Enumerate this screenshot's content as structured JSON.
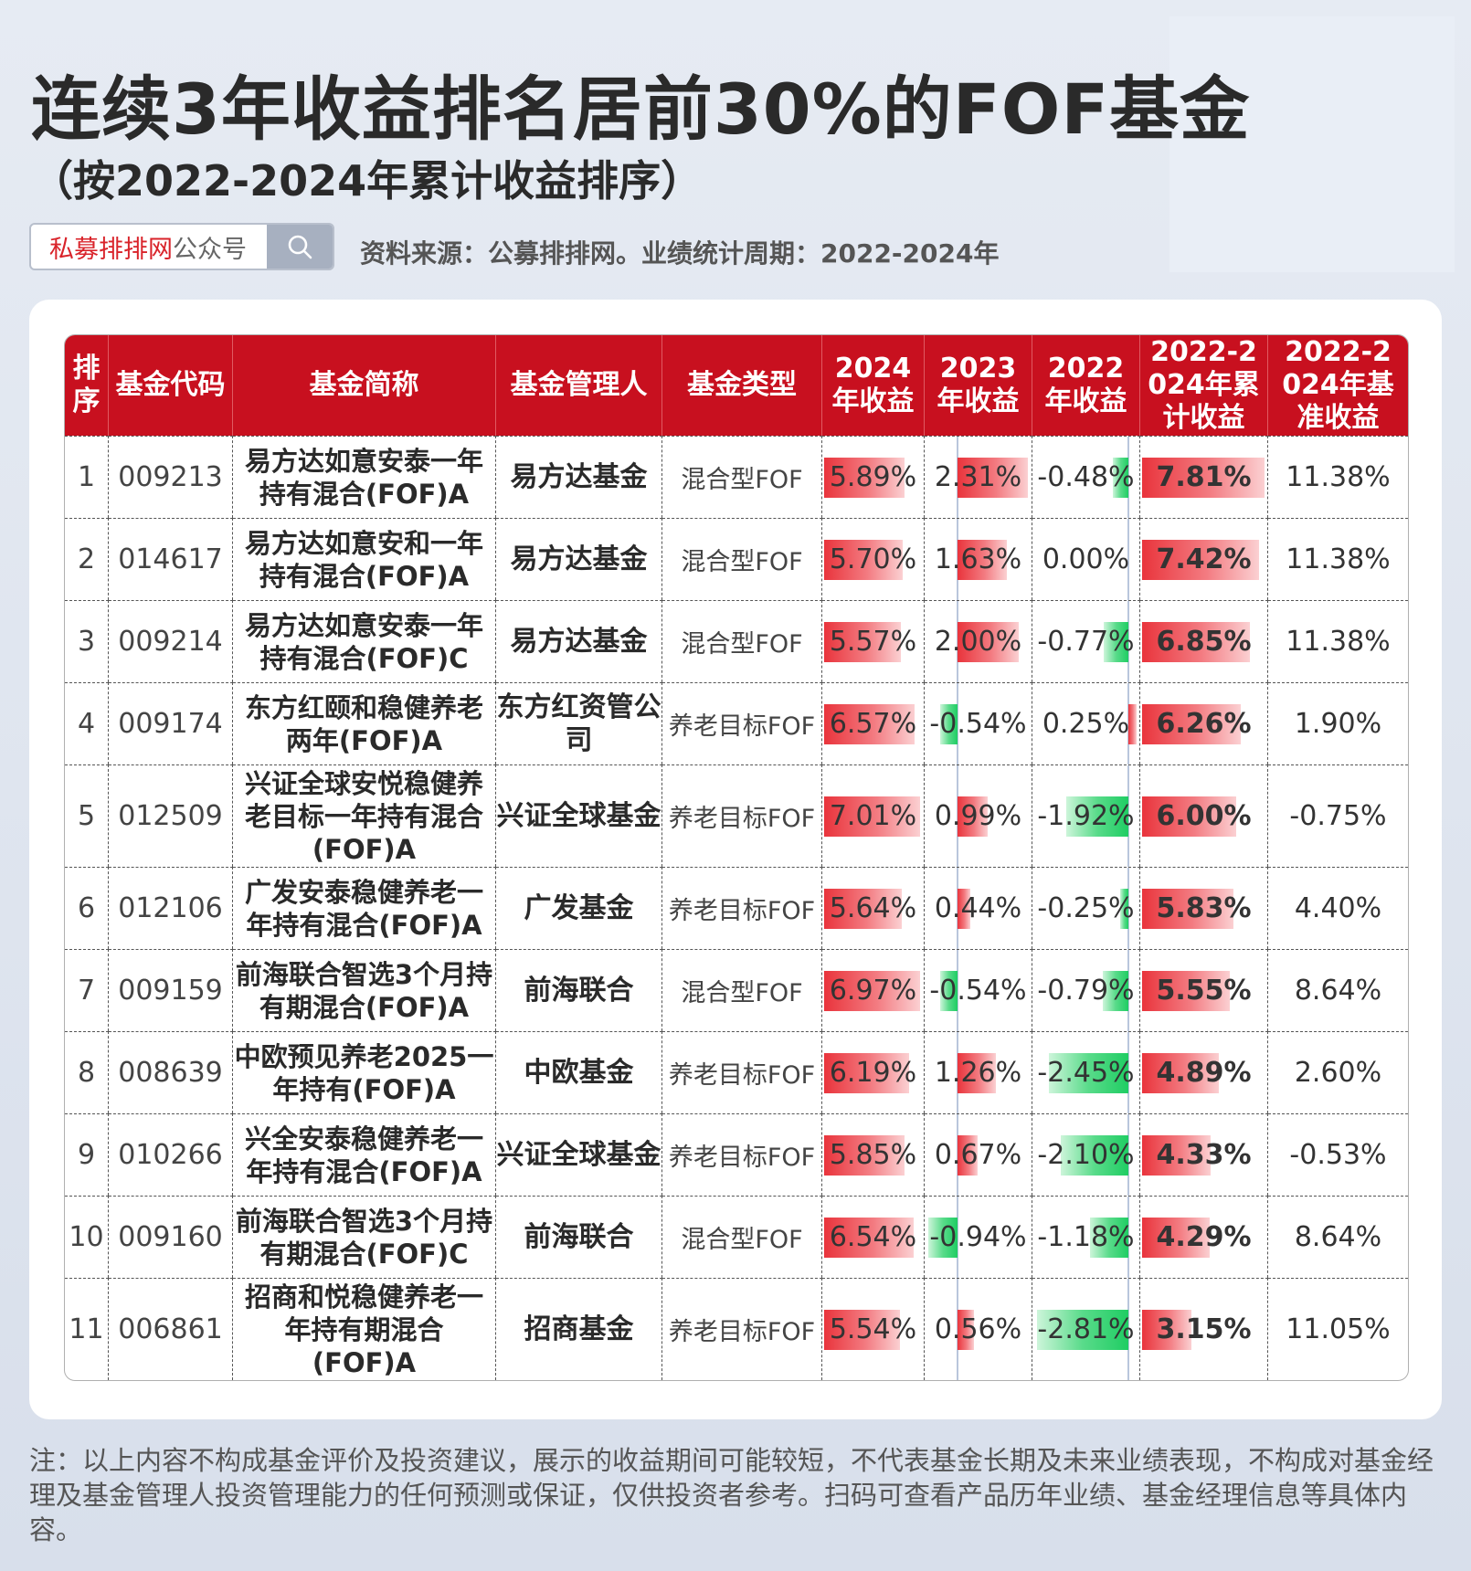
{
  "title": "连续3年收益排名居前30%的FOF基金",
  "subtitle": "（按2022-2024年累计收益排序）",
  "search": {
    "brand": "私募排排网",
    "suffix": "公众号"
  },
  "source": "资料来源：公募排排网。业绩统计周期：2022-2024年",
  "table": {
    "headers": [
      "排序",
      "基金代码",
      "基金简称",
      "基金管理人",
      "基金类型",
      "2024年收益",
      "2023年收益",
      "2022年收益",
      "2022-2024年累计收益",
      "2022-2024年基准收益"
    ],
    "rows": [
      {
        "rank": "1",
        "code": "009213",
        "name": "易方达如意安泰一年持有混合(FOF)A",
        "manager": "易方达基金",
        "type": "混合型FOF",
        "r2024": "5.89%",
        "r2023": "2.31%",
        "r2022": "-0.48%",
        "cum": "7.81%",
        "bench": "11.38%"
      },
      {
        "rank": "2",
        "code": "014617",
        "name": "易方达如意安和一年持有混合(FOF)A",
        "manager": "易方达基金",
        "type": "混合型FOF",
        "r2024": "5.70%",
        "r2023": "1.63%",
        "r2022": "0.00%",
        "cum": "7.42%",
        "bench": "11.38%"
      },
      {
        "rank": "3",
        "code": "009214",
        "name": "易方达如意安泰一年持有混合(FOF)C",
        "manager": "易方达基金",
        "type": "混合型FOF",
        "r2024": "5.57%",
        "r2023": "2.00%",
        "r2022": "-0.77%",
        "cum": "6.85%",
        "bench": "11.38%"
      },
      {
        "rank": "4",
        "code": "009174",
        "name": "东方红颐和稳健养老两年(FOF)A",
        "manager": "东方红资管公司",
        "type": "养老目标FOF",
        "r2024": "6.57%",
        "r2023": "-0.54%",
        "r2022": "0.25%",
        "cum": "6.26%",
        "bench": "1.90%"
      },
      {
        "rank": "5",
        "code": "012509",
        "name": "兴证全球安悦稳健养老目标一年持有混合(FOF)A",
        "manager": "兴证全球基金",
        "type": "养老目标FOF",
        "r2024": "7.01%",
        "r2023": "0.99%",
        "r2022": "-1.92%",
        "cum": "6.00%",
        "bench": "-0.75%"
      },
      {
        "rank": "6",
        "code": "012106",
        "name": "广发安泰稳健养老一年持有混合(FOF)A",
        "manager": "广发基金",
        "type": "养老目标FOF",
        "r2024": "5.64%",
        "r2023": "0.44%",
        "r2022": "-0.25%",
        "cum": "5.83%",
        "bench": "4.40%"
      },
      {
        "rank": "7",
        "code": "009159",
        "name": "前海联合智选3个月持有期混合(FOF)A",
        "manager": "前海联合",
        "type": "混合型FOF",
        "r2024": "6.97%",
        "r2023": "-0.54%",
        "r2022": "-0.79%",
        "cum": "5.55%",
        "bench": "8.64%"
      },
      {
        "rank": "8",
        "code": "008639",
        "name": "中欧预见养老2025一年持有(FOF)A",
        "manager": "中欧基金",
        "type": "养老目标FOF",
        "r2024": "6.19%",
        "r2023": "1.26%",
        "r2022": "-2.45%",
        "cum": "4.89%",
        "bench": "2.60%"
      },
      {
        "rank": "9",
        "code": "010266",
        "name": "兴全安泰稳健养老一年持有混合(FOF)A",
        "manager": "兴证全球基金",
        "type": "养老目标FOF",
        "r2024": "5.85%",
        "r2023": "0.67%",
        "r2022": "-2.10%",
        "cum": "4.33%",
        "bench": "-0.53%"
      },
      {
        "rank": "10",
        "code": "009160",
        "name": "前海联合智选3个月持有期混合(FOF)C",
        "manager": "前海联合",
        "type": "混合型FOF",
        "r2024": "6.54%",
        "r2023": "-0.94%",
        "r2022": "-1.18%",
        "cum": "4.29%",
        "bench": "8.64%"
      },
      {
        "rank": "11",
        "code": "006861",
        "name": "招商和悦稳健养老一年持有期混合(FOF)A",
        "manager": "招商基金",
        "type": "养老目标FOF",
        "r2024": "5.54%",
        "r2023": "0.56%",
        "r2022": "-2.81%",
        "cum": "3.15%",
        "bench": "11.05%"
      }
    ]
  },
  "note": "注：以上内容不构成基金评价及投资建议，展示的收益期间可能较短，不代表基金长期及未来业绩表现，不构成对基金经理及基金管理人投资管理能力的任何预测或保证，仅供投资者参考。扫码可查看产品历年业绩、基金经理信息等具体内容。"
}
